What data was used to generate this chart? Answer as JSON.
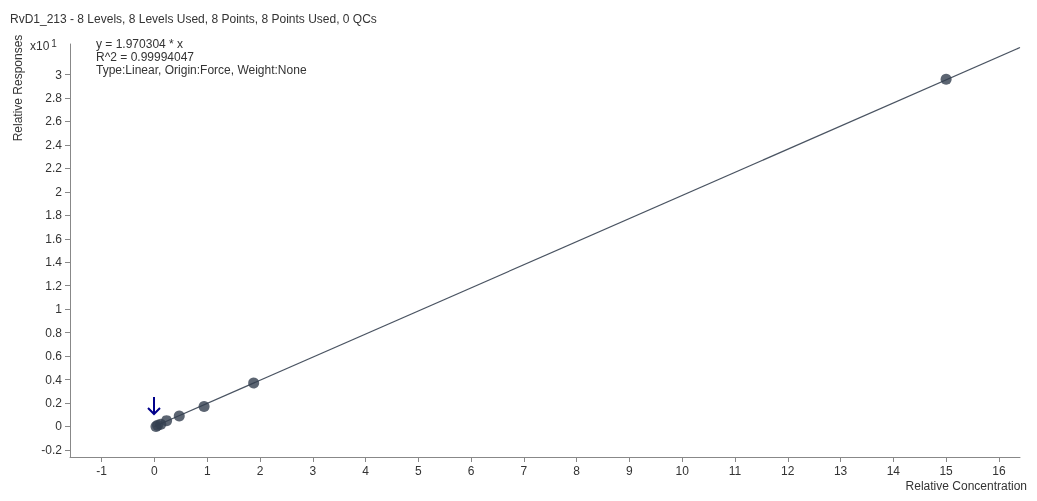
{
  "chart_data": {
    "type": "scatter",
    "title": "RvD1_213 - 8 Levels, 8 Levels Used, 8 Points, 8 Points Used, 0 QCs",
    "xlabel": "Relative Concentration",
    "ylabel": "Relative Responses",
    "annotations": [
      "x10$^{1}$",
      "y = 1.970304 * x",
      "R^2 = 0.99994047",
      "Type:Linear, Origin:Force, Weight:None"
    ],
    "series": [
      {
        "color": "#333f4f",
        "x": [
          0.03,
          0.06,
          0.12,
          0.23,
          0.47,
          0.94,
          1.88,
          15
        ],
        "values": [
          0,
          0.01,
          0.02,
          0.05,
          0.09,
          0.17,
          0.37,
          2.96
        ]
      },
      {
        "type": "line",
        "color": "#4a5462",
        "marker": "none",
        "x": [
          0,
          16.4
        ],
        "values": [
          0,
          3.23
        ]
      }
    ],
    "marker": "circle",
    "grid": false,
    "xlim": [
      -1.6,
      16.4
    ],
    "xticks": [
      -1,
      0,
      1,
      2,
      3,
      4,
      5,
      6,
      7,
      8,
      9,
      10,
      11,
      12,
      13,
      14,
      15,
      16
    ],
    "ylim": [
      -0.26,
      3.26
    ],
    "yticks": [
      -0.2,
      0,
      0.2,
      0.4,
      0.6,
      0.8,
      1,
      1.2,
      1.4,
      1.6,
      1.8,
      2,
      2.2,
      2.4,
      2.6,
      2.8,
      3
    ]
  }
}
